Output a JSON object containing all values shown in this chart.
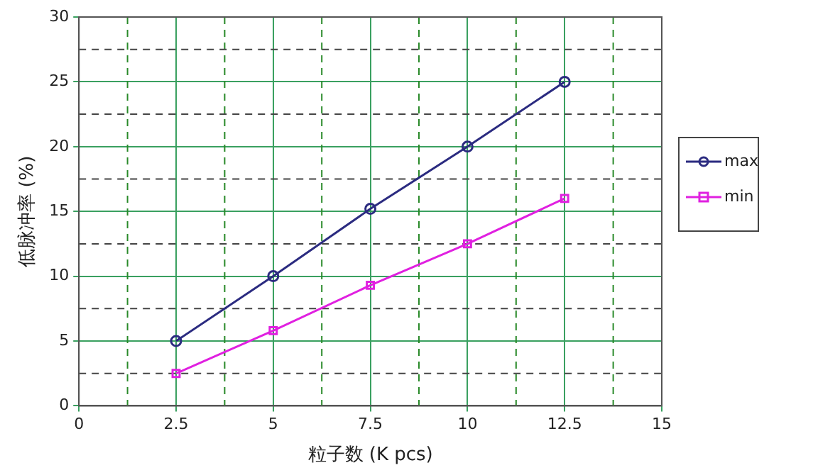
{
  "chart_data": {
    "type": "line",
    "xlabel": "粒子数 (K pcs)",
    "ylabel": "低脉冲率 (%)",
    "x": [
      2.5,
      5,
      7.5,
      10,
      12.5
    ],
    "series": [
      {
        "name": "max",
        "color": "#2b2b80",
        "marker": "circle",
        "values": [
          5,
          10,
          15.2,
          20,
          25
        ]
      },
      {
        "name": "min",
        "color": "#e020e0",
        "marker": "square",
        "values": [
          2.5,
          5.8,
          9.3,
          12.5,
          16
        ]
      }
    ],
    "xlim": [
      0,
      15
    ],
    "xticks": [
      0,
      {
        "value": 1.25,
        "label": null
      },
      2.5,
      {
        "value": 3.75,
        "label": null
      },
      5,
      {
        "value": 6.25,
        "label": null
      },
      7.5,
      {
        "value": 8.75,
        "label": null
      },
      10,
      {
        "value": 11.25,
        "label": null
      },
      12.5,
      {
        "value": 13.75,
        "label": null
      },
      15
    ],
    "ylim": [
      0,
      30
    ],
    "yticks": [
      0,
      {
        "value": 2.5,
        "label": null
      },
      5,
      {
        "value": 7.5,
        "label": null
      },
      10,
      {
        "value": 12.5,
        "label": null
      },
      15,
      {
        "value": 17.5,
        "label": null
      },
      20,
      {
        "value": 22.5,
        "label": null
      },
      25,
      {
        "value": 27.5,
        "label": null
      },
      30
    ],
    "grid": true,
    "legend": "right",
    "line_style": "solid"
  }
}
